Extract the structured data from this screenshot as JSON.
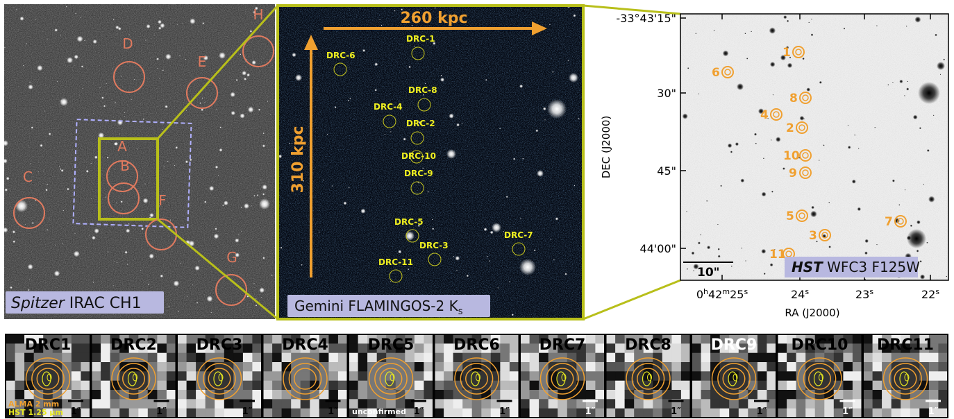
{
  "panel_spitzer": {
    "label_italic": "Spitzer",
    "label_rest": " IRAC CH1",
    "regions": [
      {
        "id": "A",
        "label": "A"
      },
      {
        "id": "B",
        "label": "B"
      },
      {
        "id": "C",
        "label": "C"
      },
      {
        "id": "D",
        "label": "D"
      },
      {
        "id": "E",
        "label": "E"
      },
      {
        "id": "F",
        "label": "F"
      },
      {
        "id": "G",
        "label": "G"
      },
      {
        "id": "H",
        "label": "H"
      }
    ]
  },
  "panel_gemini": {
    "label": "Gemini FLAMINGOS-2 K",
    "label_sub": "s",
    "scale_horizontal": "260 kpc",
    "scale_vertical": "310 kpc",
    "sources": [
      {
        "label": "DRC-1"
      },
      {
        "label": "DRC-6"
      },
      {
        "label": "DRC-8"
      },
      {
        "label": "DRC-4"
      },
      {
        "label": "DRC-2"
      },
      {
        "label": "DRC-10"
      },
      {
        "label": "DRC-9"
      },
      {
        "label": "DRC-5"
      },
      {
        "label": "DRC-3"
      },
      {
        "label": "DRC-7"
      },
      {
        "label": "DRC-11"
      }
    ]
  },
  "panel_hst": {
    "label_italic": "HST",
    "label_rest": " WFC3 F125W",
    "scale_bar_label": "10\"",
    "ylabel": "DEC (J2000)",
    "xlabel": "RA (J2000)",
    "yticks": [
      "-33°43'15\"",
      "30\"",
      "45\"",
      "44'00\""
    ],
    "xticks": [
      {
        "main": "0",
        "s1": "h",
        "mid": "42",
        "s2": "m",
        "end": "25",
        "s3": "s"
      },
      {
        "main": "",
        "s1": "",
        "mid": "",
        "s2": "",
        "end": "24",
        "s3": "s"
      },
      {
        "main": "",
        "s1": "",
        "mid": "",
        "s2": "",
        "end": "23",
        "s3": "s"
      },
      {
        "main": "",
        "s1": "",
        "mid": "",
        "s2": "",
        "end": "22",
        "s3": "s"
      }
    ],
    "sources": [
      {
        "label": "1"
      },
      {
        "label": "6"
      },
      {
        "label": "8"
      },
      {
        "label": "4"
      },
      {
        "label": "2"
      },
      {
        "label": "10"
      },
      {
        "label": "9"
      },
      {
        "label": "5"
      },
      {
        "label": "7"
      },
      {
        "label": "3"
      },
      {
        "label": "11"
      }
    ]
  },
  "cutouts": {
    "panels": [
      {
        "title": "DRC1",
        "scale": "1″"
      },
      {
        "title": "DRC2",
        "scale": "1″"
      },
      {
        "title": "DRC3",
        "scale": "1″"
      },
      {
        "title": "DRC4",
        "scale": "1″"
      },
      {
        "title": "DRC5",
        "scale": "1″",
        "note": "unconfirmed"
      },
      {
        "title": "DRC6",
        "scale": "1″"
      },
      {
        "title": "DRC7",
        "scale": "1″"
      },
      {
        "title": "DRC8",
        "scale": "1″"
      },
      {
        "title": "DRC9",
        "scale": "1″"
      },
      {
        "title": "DRC10",
        "scale": "1″"
      },
      {
        "title": "DRC11",
        "scale": "1″"
      }
    ],
    "legend_alma": "ALMA 2 mm",
    "legend_hst": "HST 1.25 μm"
  },
  "colors": {
    "region_circle": "#e07a5f",
    "frame_yellow": "#b8bf1a",
    "orange": "#f0a030",
    "label_box": "#b8b8e0",
    "source_label": "#f0f020"
  }
}
